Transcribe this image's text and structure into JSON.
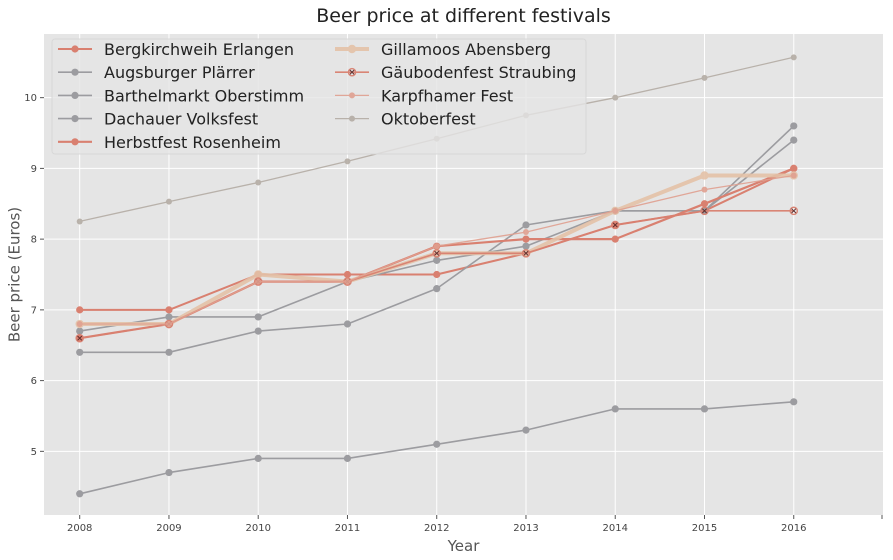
{
  "chart_data": {
    "type": "line",
    "title": "Beer price at different festivals",
    "xlabel": "Year",
    "ylabel": "Beer price (Euros)",
    "x": [
      2008,
      2009,
      2010,
      2011,
      2012,
      2013,
      2014,
      2015,
      2016
    ],
    "xlim": [
      2007.6,
      2017
    ],
    "ylim": [
      4.1,
      10.9
    ],
    "yticks": [
      5,
      6,
      7,
      8,
      9,
      10
    ],
    "grid": true,
    "legend_position": "top-left",
    "series": [
      {
        "name": "Bergkirchweih Erlangen",
        "values": [
          7.0,
          7.0,
          7.5,
          7.5,
          7.5,
          7.8,
          8.2,
          8.4,
          9.0
        ],
        "color": "#d98070",
        "linewidth": 2,
        "marker": "circle",
        "alpha": 1.0
      },
      {
        "name": "Augsburger Plärrer",
        "values": [
          4.4,
          4.7,
          4.9,
          4.9,
          5.1,
          5.3,
          5.6,
          5.6,
          5.7
        ],
        "color": "#9c9ca0",
        "linewidth": 1.6,
        "marker": "circle",
        "alpha": 1.0
      },
      {
        "name": "Barthelmarkt Oberstimm",
        "values": [
          6.7,
          6.9,
          6.9,
          7.4,
          7.7,
          7.9,
          8.4,
          8.4,
          9.4
        ],
        "color": "#9c9ca0",
        "linewidth": 1.6,
        "marker": "circle",
        "alpha": 1.0
      },
      {
        "name": "Dachauer Volksfest",
        "values": [
          6.4,
          6.4,
          6.7,
          6.8,
          7.3,
          8.2,
          8.4,
          8.4,
          9.6
        ],
        "color": "#9c9ca0",
        "linewidth": 1.6,
        "marker": "circle",
        "alpha": 1.0
      },
      {
        "name": "Herbstfest Rosenheim",
        "values": [
          6.6,
          6.8,
          7.4,
          7.4,
          7.9,
          8.0,
          8.0,
          8.5,
          9.0
        ],
        "color": "#d98070",
        "linewidth": 2.2,
        "marker": "circle",
        "alpha": 1.0
      },
      {
        "name": "Gillamoos Abensberg",
        "values": [
          6.8,
          6.8,
          7.5,
          7.4,
          7.8,
          7.8,
          8.4,
          8.9,
          8.9
        ],
        "color": "#e4c2a8",
        "linewidth": 4,
        "marker": "circle",
        "alpha": 0.9
      },
      {
        "name": "Gäubodenfest Straubing",
        "values": [
          6.6,
          6.8,
          7.4,
          7.4,
          7.8,
          7.8,
          8.2,
          8.4,
          8.4
        ],
        "color": "#d98070",
        "linewidth": 1.6,
        "marker": "x-circle",
        "alpha": 0.95
      },
      {
        "name": "Karpfhamer Fest",
        "values": [
          6.8,
          6.8,
          7.4,
          7.4,
          7.9,
          8.1,
          8.4,
          8.7,
          8.9
        ],
        "color": "#e0a090",
        "linewidth": 1.3,
        "marker": "circle",
        "alpha": 0.9
      },
      {
        "name": "Oktoberfest",
        "values": [
          8.25,
          8.53,
          8.8,
          9.1,
          9.42,
          9.75,
          10.0,
          10.28,
          10.57
        ],
        "color": "#b4aca4",
        "linewidth": 1.3,
        "marker": "circle",
        "alpha": 0.9
      }
    ]
  }
}
